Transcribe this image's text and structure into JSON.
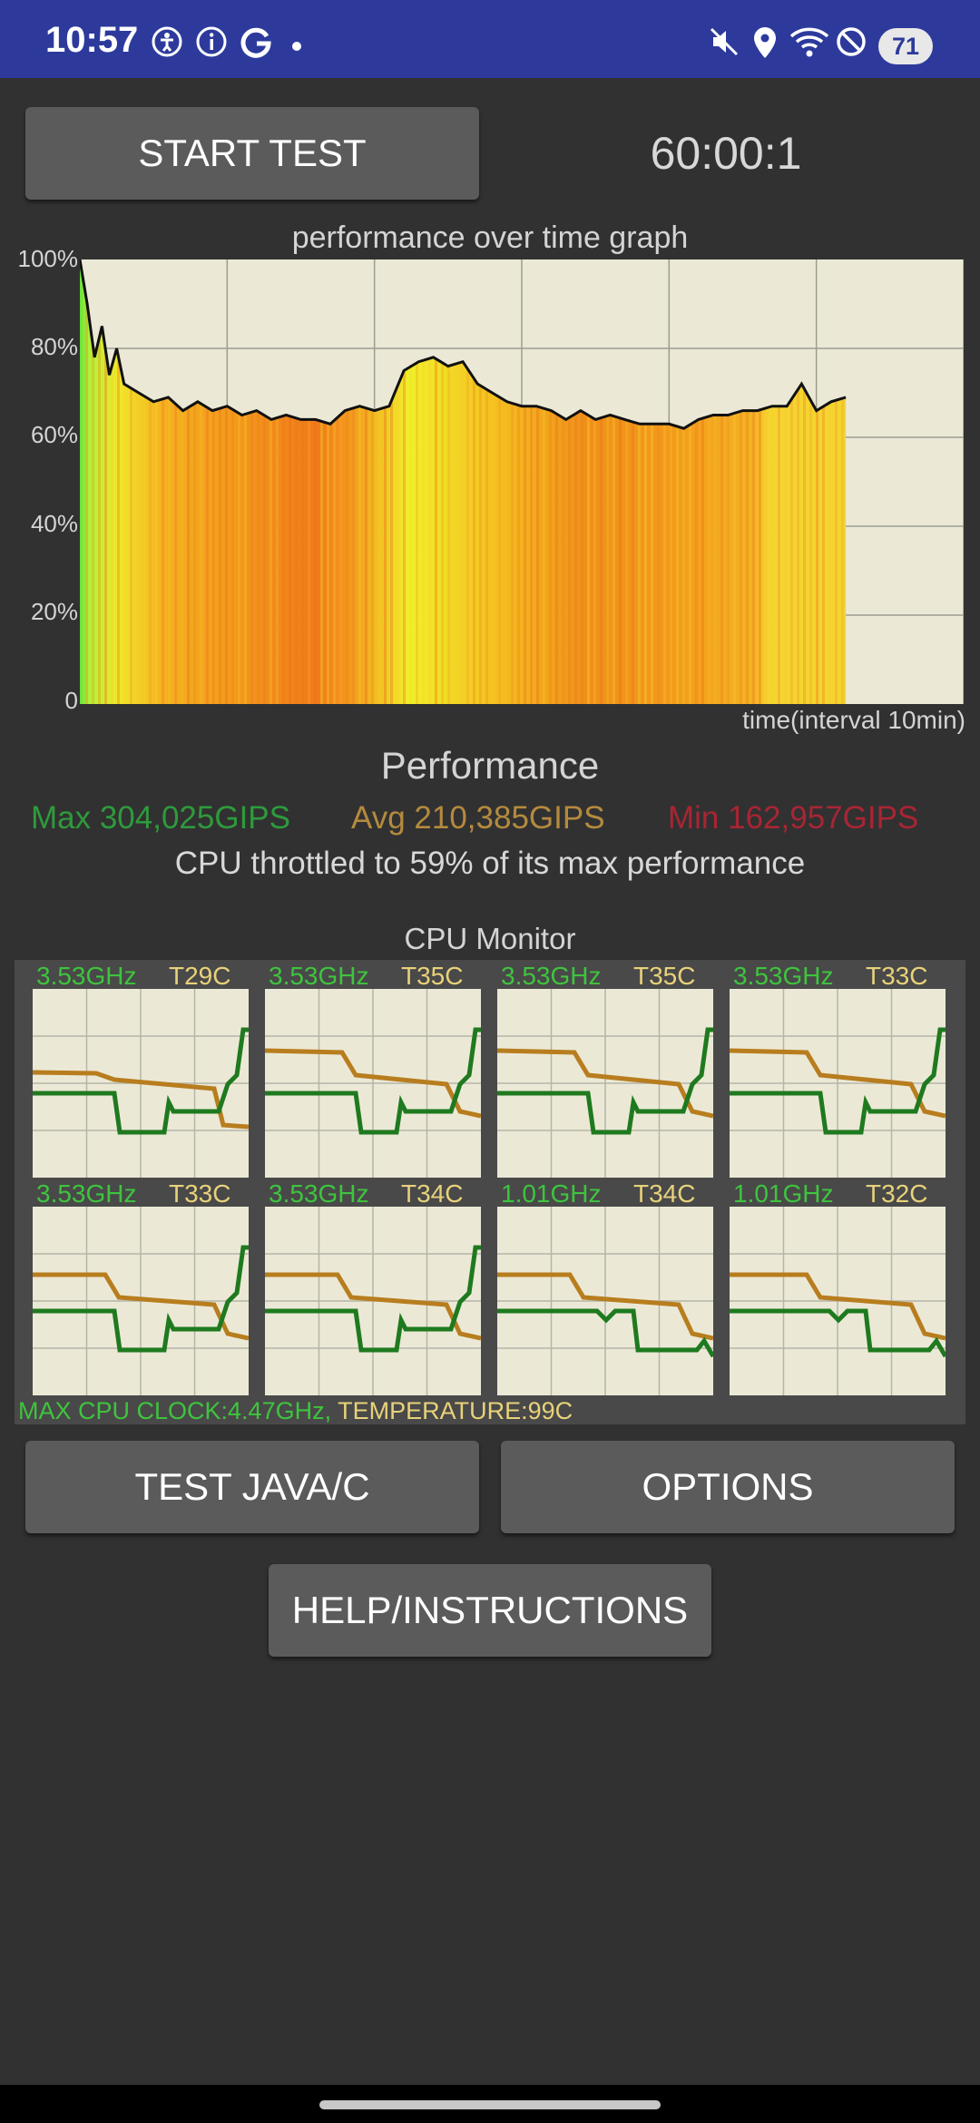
{
  "status_bar": {
    "time": "10:57",
    "battery": "71",
    "icons_left": [
      "accessibility-icon",
      "info-icon",
      "google-icon",
      "dot-icon"
    ],
    "icons_right": [
      "mute-icon",
      "location-icon",
      "wifi-icon",
      "dnd-icon"
    ]
  },
  "header": {
    "start_label": "START TEST",
    "timer": "60:00:1"
  },
  "graph": {
    "title": "performance over time graph",
    "y_ticks": [
      "100%",
      "80%",
      "60%",
      "40%",
      "20%",
      "0"
    ],
    "x_label": "time(interval 10min)"
  },
  "chart_data": {
    "type": "area",
    "title": "performance over time graph",
    "xlabel": "time(interval 10min)",
    "ylabel": "",
    "ylim": [
      0,
      100
    ],
    "xlim": [
      0,
      60
    ],
    "y_ticks": [
      "100%",
      "80%",
      "60%",
      "40%",
      "20%",
      "0"
    ],
    "grid": true,
    "series": [
      {
        "values": [
          [
            0,
            100
          ],
          [
            0.5,
            90
          ],
          [
            1,
            78
          ],
          [
            1.5,
            85
          ],
          [
            2,
            74
          ],
          [
            2.5,
            80
          ],
          [
            3,
            72
          ],
          [
            4,
            70
          ],
          [
            5,
            68
          ],
          [
            6,
            69
          ],
          [
            7,
            66
          ],
          [
            8,
            68
          ],
          [
            9,
            66
          ],
          [
            10,
            67
          ],
          [
            11,
            65
          ],
          [
            12,
            66
          ],
          [
            13,
            64
          ],
          [
            14,
            65
          ],
          [
            15,
            64
          ],
          [
            16,
            64
          ],
          [
            17,
            63
          ],
          [
            18,
            66
          ],
          [
            19,
            67
          ],
          [
            20,
            66
          ],
          [
            21,
            67
          ],
          [
            22,
            75
          ],
          [
            23,
            77
          ],
          [
            24,
            78
          ],
          [
            25,
            76
          ],
          [
            26,
            77
          ],
          [
            27,
            72
          ],
          [
            28,
            70
          ],
          [
            29,
            68
          ],
          [
            30,
            67
          ],
          [
            31,
            67
          ],
          [
            32,
            66
          ],
          [
            33,
            64
          ],
          [
            34,
            66
          ],
          [
            35,
            64
          ],
          [
            36,
            65
          ],
          [
            37,
            64
          ],
          [
            38,
            63
          ],
          [
            39,
            63
          ],
          [
            40,
            63
          ],
          [
            41,
            62
          ],
          [
            42,
            64
          ],
          [
            43,
            65
          ],
          [
            44,
            65
          ],
          [
            45,
            66
          ],
          [
            46,
            66
          ],
          [
            47,
            67
          ],
          [
            48,
            67
          ],
          [
            49,
            72
          ],
          [
            50,
            66
          ],
          [
            51,
            68
          ],
          [
            52,
            69
          ]
        ]
      }
    ]
  },
  "performance": {
    "title": "Performance",
    "max": "Max 304,025GIPS",
    "avg": "Avg 210,385GIPS",
    "min": "Min 162,957GIPS",
    "throttle": "CPU throttled to 59% of its max performance"
  },
  "cpu_monitor": {
    "title": "CPU Monitor",
    "cores": [
      {
        "freq": "3.53GHz",
        "temp": "T29C"
      },
      {
        "freq": "3.53GHz",
        "temp": "T35C"
      },
      {
        "freq": "3.53GHz",
        "temp": "T35C"
      },
      {
        "freq": "3.53GHz",
        "temp": "T33C"
      },
      {
        "freq": "3.53GHz",
        "temp": "T33C"
      },
      {
        "freq": "3.53GHz",
        "temp": "T34C"
      },
      {
        "freq": "1.01GHz",
        "temp": "T34C"
      },
      {
        "freq": "1.01GHz",
        "temp": "T32C"
      }
    ],
    "max_clock": "MAX CPU CLOCK:4.47GHz, ",
    "max_temp": "TEMPERATURE:99C"
  },
  "buttons": {
    "test_java": "TEST JAVA/C",
    "options": "OPTIONS",
    "help": "HELP/INSTRUCTIONS"
  },
  "colors": {
    "status_bar": "#2d3a9c",
    "background": "#313131",
    "button": "#5b5b5b",
    "max": "#2e9a3c",
    "avg": "#b48a3e",
    "min": "#a82534",
    "freq_line": "#1f7a1f",
    "temp_line": "#b87d1e"
  }
}
